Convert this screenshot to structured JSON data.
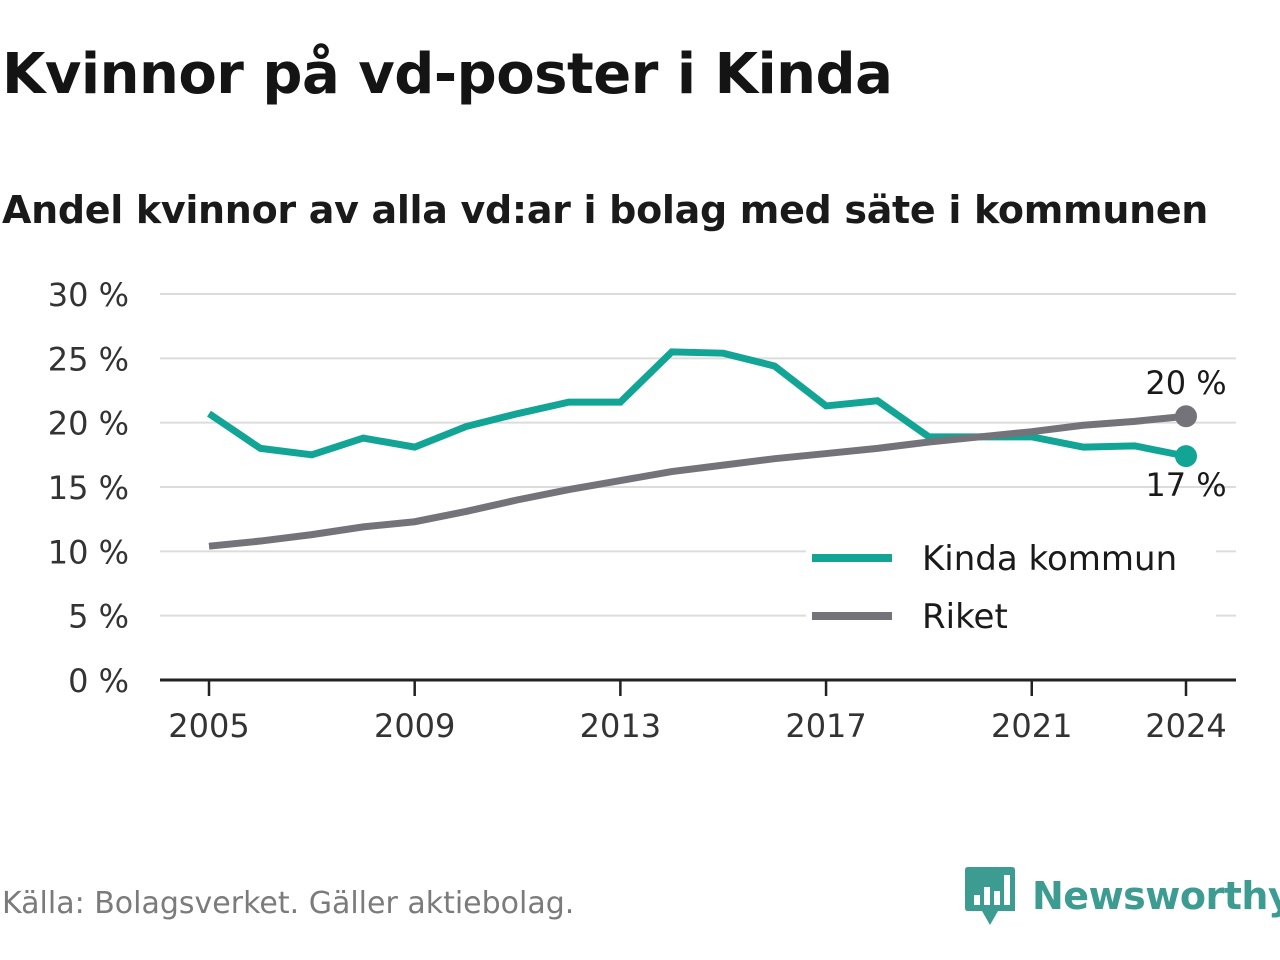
{
  "title": "Kvinnor på vd-poster i Kinda",
  "subtitle": "Andel kvinnor av alla vd:ar i bolag med säte i kommunen",
  "source": "Källa: Bolagsverket. Gäller aktiebolag.",
  "brand": {
    "name": "Newsworthy",
    "logo_icon": "newsworthy-bar-chart-icon",
    "color": "#3d9c91"
  },
  "chart_data": {
    "type": "line",
    "x": [
      2005,
      2006,
      2007,
      2008,
      2009,
      2010,
      2011,
      2012,
      2013,
      2014,
      2015,
      2016,
      2017,
      2018,
      2019,
      2020,
      2021,
      2022,
      2023,
      2024
    ],
    "x_ticks": [
      2005,
      2009,
      2013,
      2017,
      2021,
      2024
    ],
    "y_ticks": [
      0,
      5,
      10,
      15,
      20,
      25,
      30
    ],
    "y_tick_suffix": " %",
    "ylim": [
      0,
      30
    ],
    "grid": true,
    "legend_position": "bottom-right",
    "series": [
      {
        "name": "Kinda kommun",
        "color": "#12a596",
        "values": [
          20.7,
          18.0,
          17.5,
          18.8,
          18.1,
          19.7,
          20.7,
          21.6,
          21.6,
          25.5,
          25.4,
          24.4,
          21.3,
          21.7,
          18.9,
          18.9,
          18.9,
          18.1,
          18.2,
          17.4
        ],
        "end_label": "17 %",
        "end_label_position": "below"
      },
      {
        "name": "Riket",
        "color": "#74737a",
        "values": [
          10.4,
          10.8,
          11.3,
          11.9,
          12.3,
          13.1,
          14.0,
          14.8,
          15.5,
          16.2,
          16.7,
          17.2,
          17.6,
          18.0,
          18.5,
          18.9,
          19.3,
          19.8,
          20.1,
          20.5
        ],
        "end_label": "20 %",
        "end_label_position": "above"
      }
    ]
  }
}
